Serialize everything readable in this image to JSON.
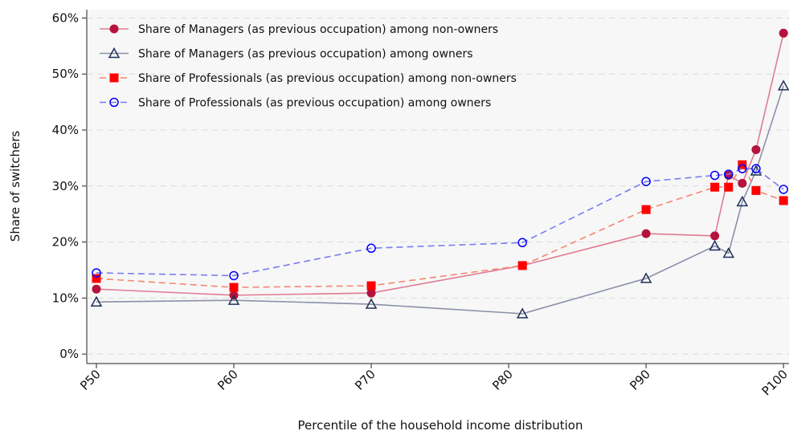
{
  "chart_data": {
    "type": "line",
    "x_label": "Percentile of the household income distribution",
    "y_label": "Share of switchers",
    "x": [
      50,
      60,
      70,
      81,
      90,
      95,
      96,
      97,
      98,
      100
    ],
    "xlim": [
      49.3,
      100.4
    ],
    "xticks": [
      {
        "value": 50,
        "label": "P50"
      },
      {
        "value": 60,
        "label": "P60"
      },
      {
        "value": 70,
        "label": "P70"
      },
      {
        "value": 80,
        "label": "P80"
      },
      {
        "value": 90,
        "label": "P90"
      },
      {
        "value": 100,
        "label": "P100"
      }
    ],
    "ylim": [
      -1.7,
      61.5
    ],
    "yticks": [
      {
        "value": 0,
        "label": "0%"
      },
      {
        "value": 10,
        "label": "10%"
      },
      {
        "value": 20,
        "label": "20%"
      },
      {
        "value": 30,
        "label": "30%"
      },
      {
        "value": 40,
        "label": "40%"
      },
      {
        "value": 50,
        "label": "50%"
      },
      {
        "value": 60,
        "label": "60%"
      }
    ],
    "grid": true,
    "legend": "upper left",
    "series": [
      {
        "name": "Share of Managers (as previous occupation) among non-owners",
        "color": "#b5123c",
        "line_color": "#e07b93",
        "marker": "circle",
        "linestyle": "solid",
        "values": [
          11.6,
          10.5,
          10.9,
          15.8,
          21.5,
          21.1,
          31.9,
          30.5,
          36.5,
          57.3
        ]
      },
      {
        "name": "Share of Managers (as previous occupation) among owners",
        "color": "#1f2f5a",
        "line_color": "#8a90a8",
        "marker": "triangle",
        "linestyle": "solid",
        "values": [
          9.3,
          9.6,
          8.9,
          7.2,
          13.5,
          19.3,
          18.0,
          27.2,
          32.7,
          47.9
        ]
      },
      {
        "name": "Share of Professionals (as previous occupation) among non-owners",
        "color": "#ff0000",
        "line_color": "#f5866f",
        "marker": "square",
        "linestyle": "dashed",
        "values": [
          13.5,
          11.9,
          12.2,
          15.8,
          25.8,
          29.8,
          29.8,
          33.8,
          29.2,
          27.4
        ]
      },
      {
        "name": "Share of Professionals (as previous occupation) among owners",
        "color": "#0000ff",
        "line_color": "#7b7bf0",
        "marker": "open-circle",
        "linestyle": "dashed",
        "values": [
          14.5,
          14.0,
          18.9,
          19.9,
          30.8,
          31.9,
          32.1,
          33.1,
          33.1,
          29.4
        ]
      }
    ]
  }
}
